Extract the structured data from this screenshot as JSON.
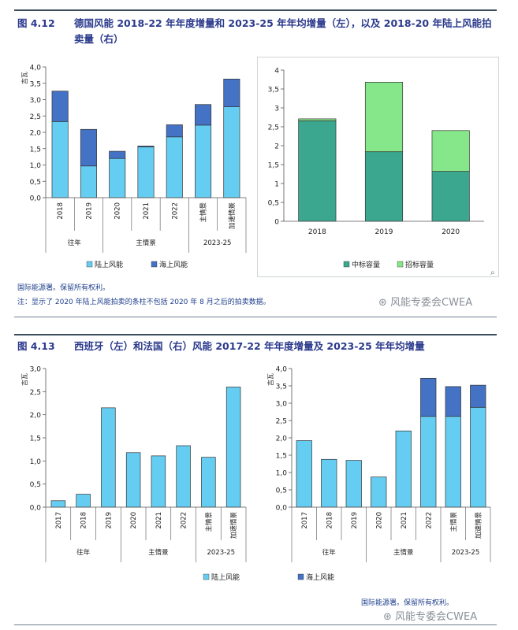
{
  "fig1": {
    "number": "图 4.12",
    "title": "德国风能 2018-22 年年度增量和 2023-25 年年均增量（左），以及 2018-20 年陆上风能拍卖量（右）",
    "source": "国际能源署。保留所有权利。",
    "note": "注：显示了 2020 年陆上风能拍卖的条柱不包括 2020 年 8 月之后的拍卖数据。",
    "watermark": "风能专委会CWEA"
  },
  "fig2": {
    "number": "图 4.13",
    "title": "西班牙（左）和法国（右）风能 2017-22 年年度增量及 2023-25 年年均增量",
    "source": "国际能源署。保留所有权利。",
    "watermark": "风能专委会CWEA"
  },
  "colors": {
    "onshore": "#66cdf2",
    "offshore": "#4472c4",
    "won": "#3aa78e",
    "tender": "#86e68a",
    "title": "#2b3a8c"
  },
  "chart_data": [
    {
      "id": "germany",
      "type": "bar",
      "stacked": true,
      "ylabel": "吉瓦",
      "ylim": [
        0,
        4
      ],
      "yticks": [
        "0,0",
        "0,5",
        "1,0",
        "1,5",
        "2,0",
        "2,5",
        "3,0",
        "3,5",
        "4,0"
      ],
      "categories": [
        "2018",
        "2019",
        "2020",
        "2021",
        "2022",
        "主情景",
        "加速情景"
      ],
      "groups": [
        {
          "label": "往年",
          "span": 2
        },
        {
          "label": "主情景",
          "span": 3
        },
        {
          "label": "2023-25",
          "span": 2
        }
      ],
      "series": [
        {
          "name": "陆上风能",
          "values": [
            2.33,
            0.97,
            1.2,
            1.55,
            1.86,
            2.22,
            2.78
          ]
        },
        {
          "name": "海上风能",
          "values": [
            0.93,
            1.12,
            0.22,
            0.03,
            0.37,
            0.63,
            0.85
          ]
        }
      ],
      "legend": [
        "陆上风能",
        "海上风能"
      ]
    },
    {
      "id": "germany-auction",
      "type": "bar",
      "stacked": true,
      "ylim": [
        0,
        4
      ],
      "yticks": [
        "0",
        "0,5",
        "1",
        "1,5",
        "2",
        "2,5",
        "3",
        "3,5",
        "4"
      ],
      "categories": [
        "2018",
        "2019",
        "2020"
      ],
      "series": [
        {
          "name": "中标容量",
          "values": [
            2.66,
            1.84,
            1.32
          ]
        },
        {
          "name": "招标容量",
          "values": [
            0.05,
            1.84,
            1.08
          ]
        }
      ],
      "legend": [
        "中标容量",
        "招标容量"
      ]
    },
    {
      "id": "spain",
      "type": "bar",
      "stacked": true,
      "ylabel": "吉瓦",
      "ylim": [
        0,
        3
      ],
      "yticks": [
        "0,0",
        "0,5",
        "1,0",
        "1,5",
        "2,0",
        "2,5",
        "3,0"
      ],
      "categories": [
        "2017",
        "2018",
        "2019",
        "2020",
        "2021",
        "2022",
        "主情景",
        "加速情景"
      ],
      "groups": [
        {
          "label": "往年",
          "span": 3
        },
        {
          "label": "主情景",
          "span": 3
        },
        {
          "label": "2023-25",
          "span": 2
        }
      ],
      "series": [
        {
          "name": "陆上风能",
          "values": [
            0.14,
            0.28,
            2.15,
            1.18,
            1.11,
            1.33,
            1.08,
            2.6
          ]
        },
        {
          "name": "海上风能",
          "values": [
            0,
            0,
            0,
            0,
            0,
            0,
            0,
            0
          ]
        }
      ],
      "legend": [
        "陆上风能"
      ]
    },
    {
      "id": "france",
      "type": "bar",
      "stacked": true,
      "ylabel": "吉瓦",
      "ylim": [
        0,
        4
      ],
      "yticks": [
        "0,0",
        "0,5",
        "1,0",
        "1,5",
        "2,0",
        "2,5",
        "3,0",
        "3,5",
        "4,0"
      ],
      "categories": [
        "2017",
        "2018",
        "2019",
        "2020",
        "2021",
        "2022",
        "主情景",
        "加速情景"
      ],
      "groups": [
        {
          "label": "往年",
          "span": 3
        },
        {
          "label": "主情景",
          "span": 3
        },
        {
          "label": "2023-25",
          "span": 2
        }
      ],
      "series": [
        {
          "name": "陆上风能",
          "values": [
            1.92,
            1.38,
            1.35,
            0.87,
            2.2,
            2.62,
            2.62,
            2.88
          ]
        },
        {
          "name": "海上风能",
          "values": [
            0,
            0,
            0,
            0,
            0,
            1.1,
            0.86,
            0.64
          ]
        }
      ],
      "legend": [
        "海上风能"
      ]
    }
  ]
}
